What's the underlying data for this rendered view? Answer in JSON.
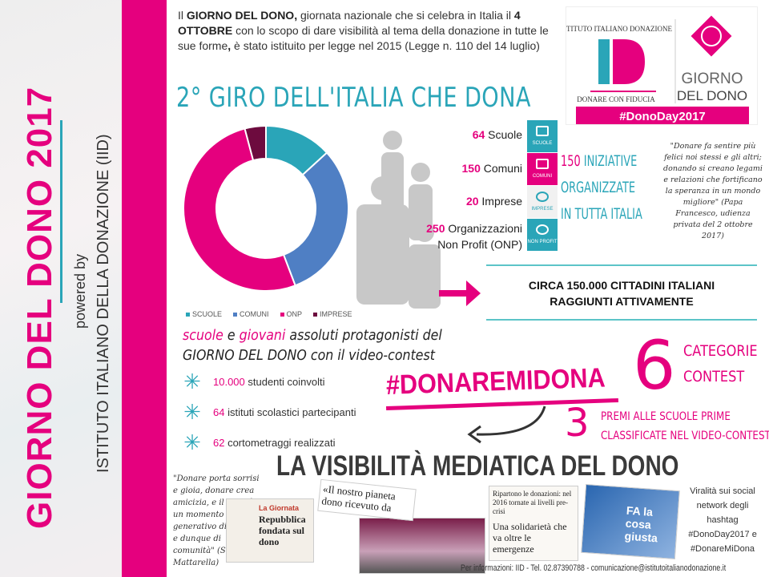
{
  "side": {
    "title": "GIORNO DEL DONO 2017",
    "powered": "powered by",
    "institute": "ISTITUTO ITALIANO DELLA DONAZIONE (IID)"
  },
  "intro": {
    "p1": "Il ",
    "b1": "GIORNO DEL DONO,",
    "p2": " giornata nazionale che si celebra in Italia il ",
    "b2": "4 OTTOBRE",
    "p3": " con lo scopo di dare visibilità al tema della donazione in tutte le sue forme",
    "b3": ",",
    "p4": " è stato istituito per legge nel 2015 (Legge n. 110 del 14 luglio)"
  },
  "giro_title": "2° GIRO DELL'ITALIA CHE DONA",
  "logo": {
    "arc": "ISTITUTO ITALIANO DONAZIONE",
    "mark": "ID",
    "tagline": "DONARE CON FIDUCIA",
    "giorno1": "GIORNO",
    "giorno2": "DEL DONO",
    "hashtag": "#DonoDay2017"
  },
  "colors": {
    "pink": "#e5007e",
    "teal": "#2aa5b8",
    "blue": "#4f7fc4",
    "dark": "#6d0b3e"
  },
  "chart_data": {
    "type": "pie",
    "donut": true,
    "categories": [
      "SCUOLE",
      "COMUNI",
      "ONP",
      "IMPRESE"
    ],
    "values": [
      64,
      150,
      250,
      20
    ],
    "colors": [
      "#2aa5b8",
      "#4f7fc4",
      "#e5007e",
      "#6d0b3e"
    ],
    "legend": "bottom"
  },
  "stats": [
    {
      "n": "64",
      "label": " Scuole",
      "tile": "SCUOLE",
      "icon": "book-icon",
      "color": "#2aa5b8"
    },
    {
      "n": "150",
      "label": " Comuni",
      "tile": "COMUNI",
      "icon": "building-icon",
      "color": "#e5007e"
    },
    {
      "n": "20",
      "label": " Imprese",
      "tile": "IMPRESE",
      "icon": "gears-icon",
      "color": "#f1f1f1"
    },
    {
      "n": "250",
      "label": " Organizzazioni Non Profit (ONP)",
      "tile": "NON PROFIT",
      "icon": "heart-icon",
      "color": "#2aa5b8"
    }
  ],
  "initiatives": {
    "n": "150",
    "l1": " INIZIATIVE",
    "l2": "ORGANIZZATE",
    "l3": "IN TUTTA ITALIA"
  },
  "papa_quote": "\"Donare fa sentire più felici noi stessi e gli altri; donando si creano legami e relazioni che fortificano la speranza in un mondo migliore\" (Papa Francesco, udienza privata del 2 ottobre 2017)",
  "circa": {
    "l1": "CIRCA 150.000 CITTADINI ITALIANI",
    "l2": "RAGGIUNTI ATTIVAMENTE"
  },
  "protagonists": {
    "w1": "scuole",
    "w2": " e ",
    "w3": "giovani",
    "w4": " assoluti protagonisti del",
    "w5": "GIORNO DEL DONO",
    "w6": " con il video-contest"
  },
  "bullets": [
    {
      "n": "10.000",
      "t": " studenti coinvolti"
    },
    {
      "n": "64",
      "t": " istituti scolastici partecipanti"
    },
    {
      "n": "62",
      "t": " cortometraggi realizzati"
    }
  ],
  "hashtag": "#DONAREMIDONA",
  "categories": {
    "n": "6",
    "l1": "CATEGORIE",
    "l2": "CONTEST"
  },
  "prizes": {
    "n": "3",
    "l1": "PREMI ALLE SCUOLE PRIME",
    "l2": "CLASSIFICATE NEL VIDEO-CONTEST"
  },
  "media_title": "LA VISIBILITÀ MEDIATICA DEL DONO",
  "mattarella_quote": "\"Donare porta sorrisi e gioia, donare crea amicizia, e il dono è un momento generativo di fiducia, e dunque di comunità\" (Sergio Mattarella)",
  "clips": {
    "c1a": "La Giornata",
    "c1b": "Repubblica fondata sul dono",
    "c2": "«Il nostro pianeta dono ricevuto da con...",
    "c3a": "Ripartono le donazioni: nel 2016 tornate ai livelli pre-crisi",
    "c3b": "Una solidarietà che va oltre le emergenze",
    "c4": "FA la cosa giusta"
  },
  "viral": "Viralità sui social network degli hashtag #DonoDay2017 e #DonareMiDona",
  "info": "Per informazioni: IID - Tel. 02.87390788 - comunicazione@istitutoitalianodonazione.it"
}
